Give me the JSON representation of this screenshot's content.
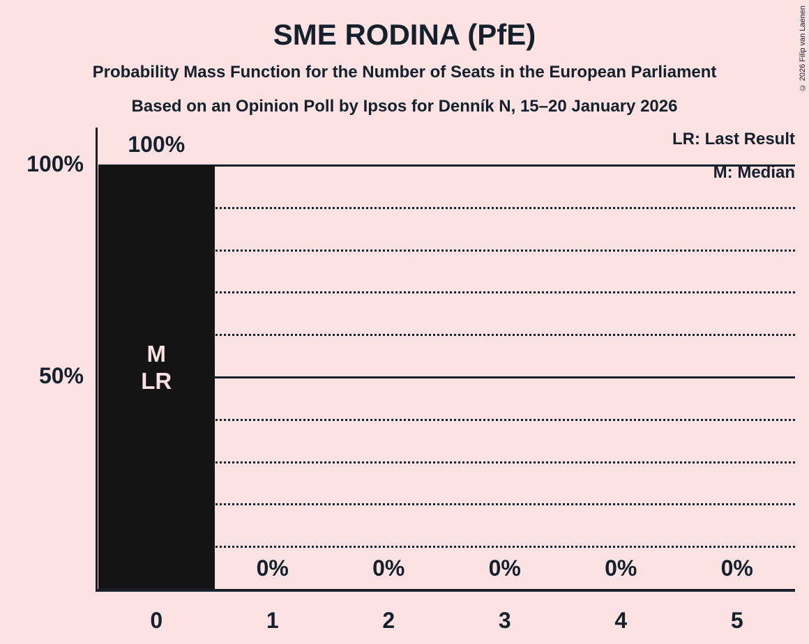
{
  "title": "SME RODINA (PfE)",
  "subtitle": "Probability Mass Function for the Number of Seats in the European Parliament",
  "source_line": "Based on an Opinion Poll by Ipsos for Denník N, 15–20 January 2026",
  "copyright": "© 2026 Filip van Laenen",
  "legend": {
    "lr": "LR: Last Result",
    "m": "M: Median"
  },
  "colors": {
    "background": "#fce2e2",
    "text": "#14202c",
    "bar": "#141414",
    "bar_text": "#fce2e2"
  },
  "chart_data": {
    "type": "bar",
    "title": "SME RODINA (PfE)",
    "categories": [
      "0",
      "1",
      "2",
      "3",
      "4",
      "5"
    ],
    "values": [
      100,
      0,
      0,
      0,
      0,
      0
    ],
    "value_labels": [
      "100%",
      "0%",
      "0%",
      "0%",
      "0%",
      "0%"
    ],
    "y_ticks": [
      {
        "value": 100,
        "label": "100%"
      },
      {
        "value": 50,
        "label": "50%"
      }
    ],
    "ylim": [
      0,
      100
    ],
    "gridlines": {
      "solid": [
        100,
        50
      ],
      "dotted": [
        90,
        80,
        70,
        60,
        40,
        30,
        20,
        10
      ]
    },
    "annotations": [
      {
        "category": "0",
        "lines": [
          "M",
          "LR"
        ]
      }
    ],
    "legend_position": "top-right",
    "xlabel": "",
    "ylabel": ""
  }
}
